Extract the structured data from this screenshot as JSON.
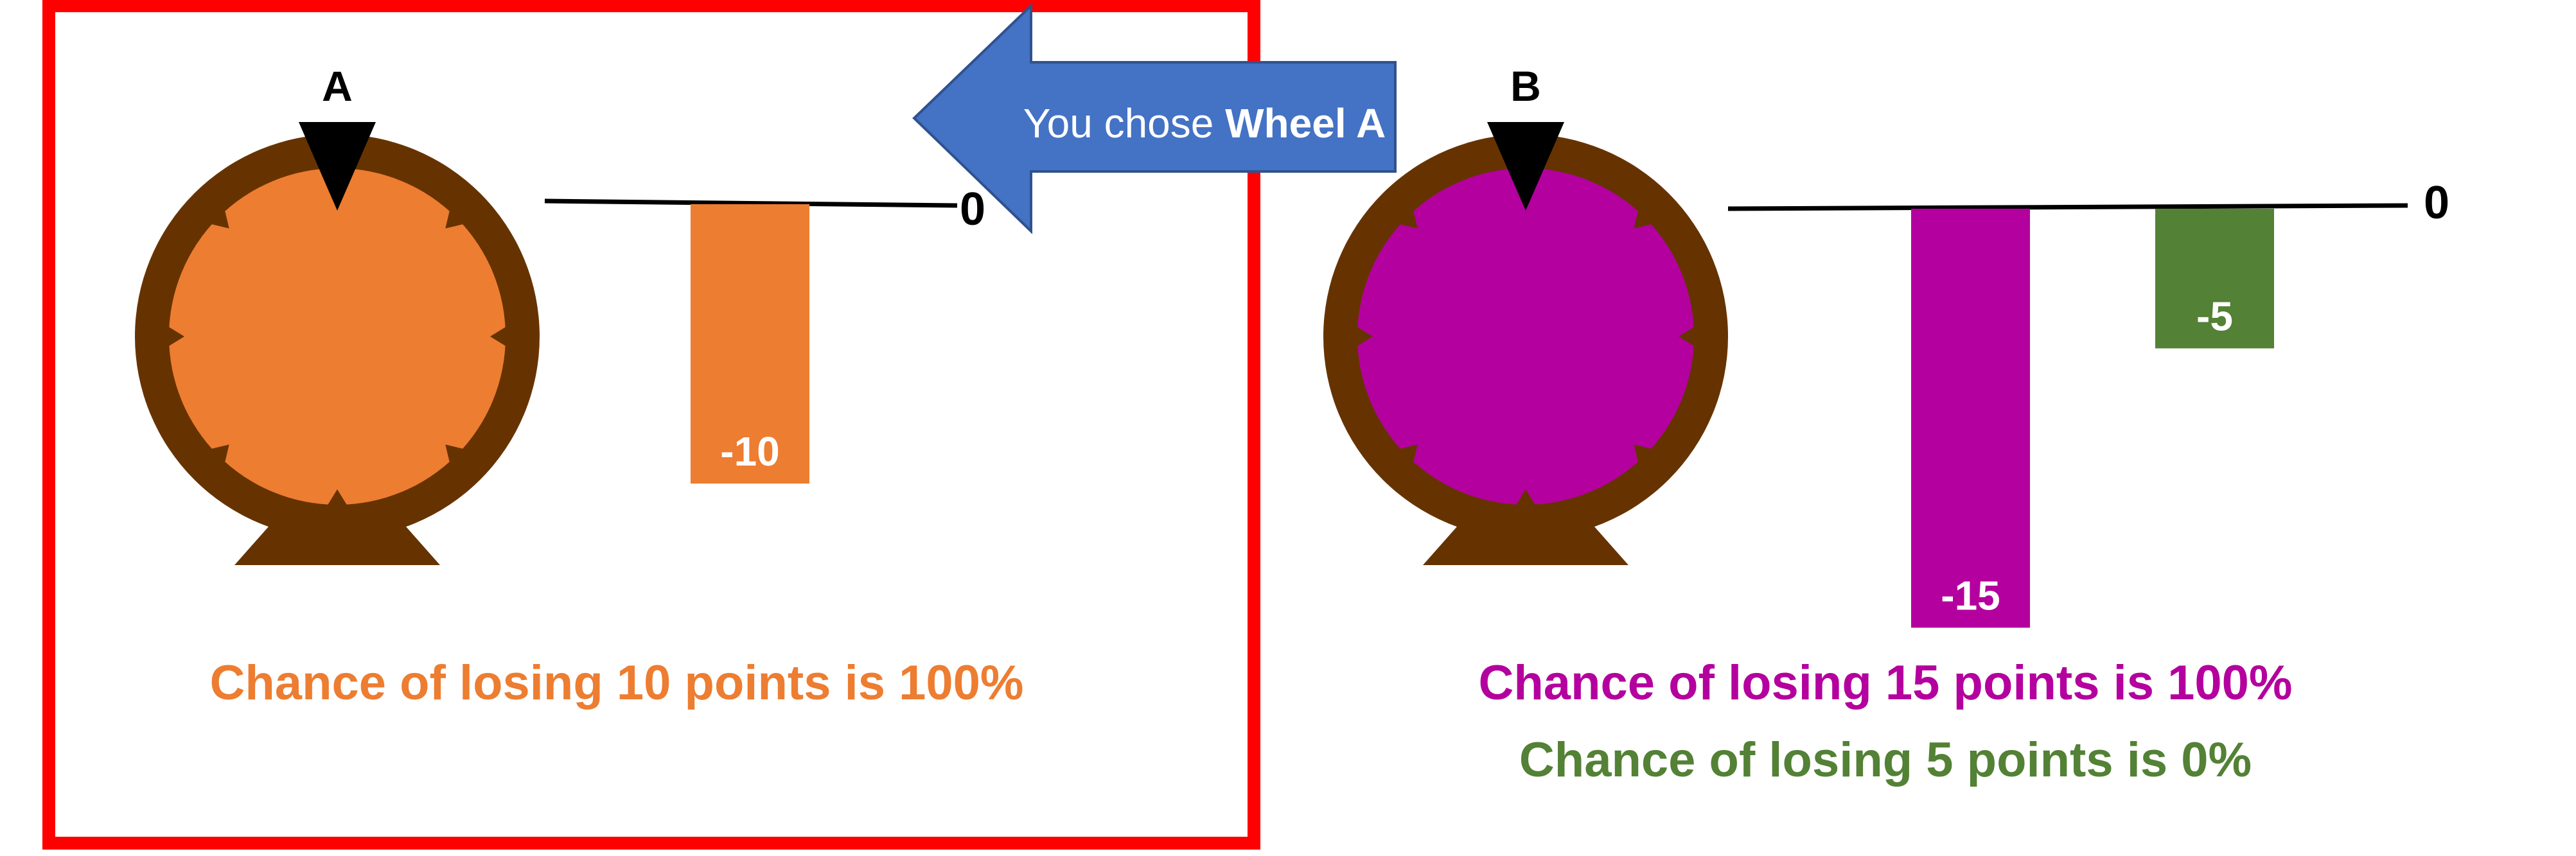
{
  "colors": {
    "frame": "#FF0000",
    "wheel_rim": "#663300",
    "wheel_a": "#ED7D31",
    "wheel_b": "#B4009E",
    "bar_green": "#538135",
    "arrow_fill": "#4472C4",
    "arrow_stroke": "#2F528F",
    "pointer": "#000000"
  },
  "icons": [
    "wheel-a-icon",
    "wheel-b-icon",
    "pointer-icon",
    "left-arrow-icon"
  ],
  "callout": {
    "prefix": "You chose ",
    "emphasis": "Wheel A"
  },
  "wheels": [
    {
      "id": "a",
      "label": "A",
      "color_key": "wheel_a",
      "zero_label": "0",
      "chart_data": {
        "type": "bar",
        "ylim": [
          -15,
          0
        ],
        "bars": [
          {
            "value": -10,
            "label": "-10",
            "color_key": "wheel_a"
          }
        ]
      },
      "probabilities": [
        {
          "text": "Chance of losing 10 points is 100%",
          "color_key": "wheel_a"
        }
      ]
    },
    {
      "id": "b",
      "label": "B",
      "color_key": "wheel_b",
      "zero_label": "0",
      "chart_data": {
        "type": "bar",
        "ylim": [
          -15,
          0
        ],
        "bars": [
          {
            "value": -15,
            "label": "-15",
            "color_key": "wheel_b"
          },
          {
            "value": -5,
            "label": "-5",
            "color_key": "bar_green"
          }
        ]
      },
      "probabilities": [
        {
          "text": "Chance of losing 15 points is 100%",
          "color_key": "wheel_b"
        },
        {
          "text": "Chance of losing 5 points is 0%",
          "color_key": "bar_green"
        }
      ]
    }
  ]
}
